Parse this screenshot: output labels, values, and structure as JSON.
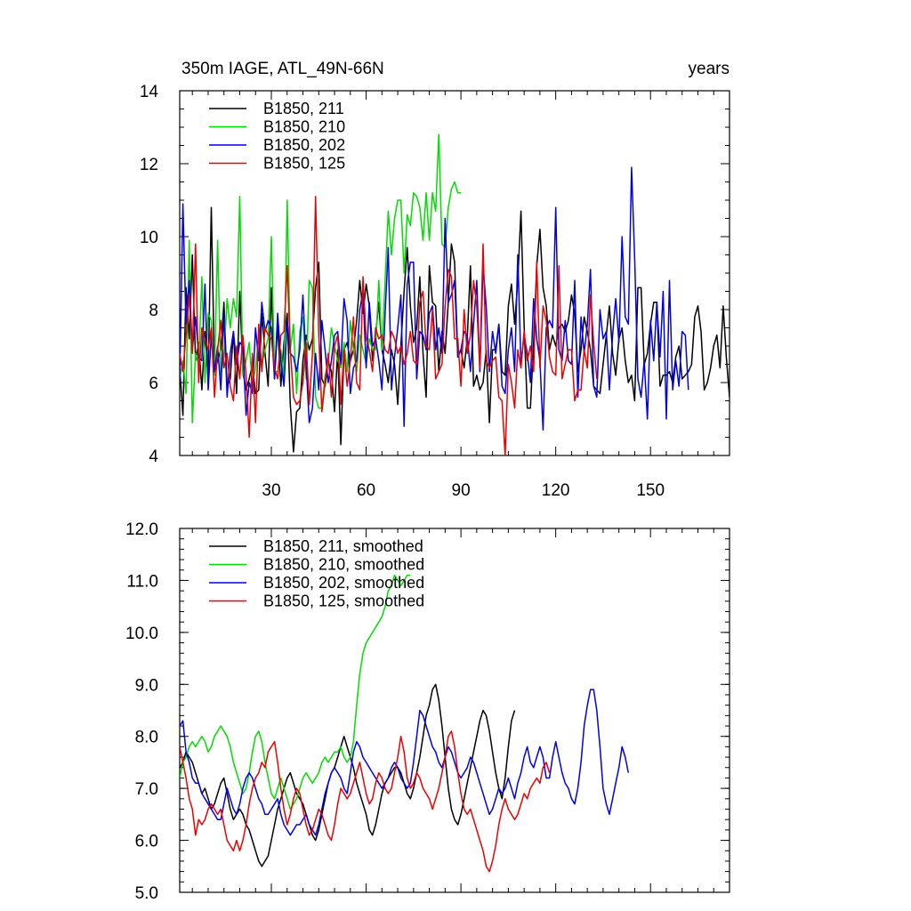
{
  "colors": {
    "black": "#000000",
    "green": "#00dd00",
    "blue": "#0000ee",
    "red": "#ee0000"
  },
  "chart_data": [
    {
      "type": "line",
      "title": "350m IAGE, ATL_49N-66N",
      "right_title": "years",
      "xlabel": "",
      "ylabel": "",
      "xlim": [
        1,
        175
      ],
      "ylim": [
        4,
        14
      ],
      "yticks": [
        4,
        6,
        8,
        10,
        12,
        14
      ],
      "ytick_labels": [
        "4",
        "6",
        "8",
        "10",
        "12",
        "14"
      ],
      "xticks": [
        30,
        60,
        90,
        120,
        150
      ],
      "xtick_labels": [
        "30",
        "60",
        "90",
        "120",
        "150"
      ],
      "legend_position": "top-left",
      "series": [
        {
          "name": "B1850, 211",
          "color": "#000000",
          "values": [
            6.4,
            5.1,
            8.6,
            7.2,
            9.5,
            6.6,
            7.1,
            5.8,
            7.4,
            6.1,
            10.8,
            6.3,
            6.6,
            6.9,
            8.2,
            5.9,
            6.1,
            7.4,
            5.7,
            8.5,
            6.3,
            5.8,
            6.1,
            6.5,
            5.7,
            5.8,
            7.9,
            6.8,
            5.9,
            8.6,
            6.1,
            7.6,
            5.9,
            7.1,
            7.9,
            5.4,
            4.1,
            5.2,
            5.3,
            6.6,
            7.3,
            6.9,
            7.2,
            8.6,
            9.3,
            6.1,
            5.9,
            6.6,
            6.3,
            5.2,
            6.9,
            4.3,
            6.9,
            7.1,
            6.6,
            6.9,
            7.7,
            8.8,
            7.9,
            8.7,
            8.1,
            6.6,
            7.3,
            8.2,
            6.9,
            6.5,
            6.0,
            6.9,
            6.5,
            5.4,
            7.0,
            8.5,
            9.7,
            8.1,
            7.1,
            7.5,
            8.9,
            6.8,
            5.6,
            9.2,
            8.2,
            8.1,
            6.3,
            7.4,
            6.8,
            8.2,
            9.8,
            9.3,
            6.7,
            6.9,
            6.4,
            7.2,
            9.2,
            5.9,
            6.2,
            5.8,
            6.0,
            6.9,
            4.9,
            6.9,
            6.9,
            7.6,
            6.3,
            6.2,
            8.1,
            8.7,
            7.6,
            8.8,
            10.7,
            7.6,
            5.3,
            5.3,
            7.1,
            9.2,
            10.2,
            8.6,
            8.1,
            6.9,
            7.3,
            7.0,
            7.5,
            7.6,
            7.4,
            7.7,
            8.4,
            7.9,
            6.3,
            6.9,
            7.8,
            7.4,
            6.9,
            5.9,
            5.8,
            5.7,
            6.5,
            7.3,
            8.1,
            6.8,
            6.2,
            7.2,
            7.5,
            6.6,
            6.0,
            6.2,
            5.5,
            8.6,
            8.6,
            6.5,
            6.8,
            7.6,
            8.2,
            8.2,
            5.9,
            6.2,
            6.2,
            6.3,
            6.0,
            6.7,
            7.0,
            6.1,
            6.2,
            6.3,
            6.5,
            7.8,
            8.1,
            7.4,
            5.8,
            6.0,
            6.4,
            7.0,
            7.3,
            6.4,
            8.1,
            6.7,
            5.6,
            6.3,
            6.0,
            6.4,
            7.5
          ]
        },
        {
          "name": "B1850, 210",
          "color": "#00dd00",
          "values": [
            6.1,
            6.6,
            5.7,
            9.9,
            4.9,
            6.8,
            6.5,
            8.9,
            6.0,
            7.9,
            7.7,
            6.2,
            9.9,
            6.2,
            6.7,
            8.3,
            7.5,
            8.3,
            7.8,
            11.1,
            6.2,
            6.6,
            7.1,
            5.9,
            6.4,
            7.3,
            6.5,
            6.9,
            7.2,
            10.0,
            6.3,
            6.3,
            6.9,
            6.1,
            11.0,
            6.9,
            7.6,
            5.7,
            7.4,
            7.8,
            6.1,
            8.8,
            8.6,
            5.6,
            5.3,
            5.3,
            6.2,
            6.5,
            7.5,
            7.0,
            6.6,
            6.4,
            7.1,
            6.3,
            7.7,
            6.9,
            6.3,
            7.3,
            6.9,
            6.5,
            7.2,
            6.9,
            6.9,
            8.8,
            6.9,
            8.8,
            10.7,
            9.5,
            10.5,
            11.0,
            11.0,
            9.0,
            10.6,
            10.3,
            11.2,
            11.1,
            10.8,
            9.9,
            11.2,
            9.9,
            11.2,
            10.7,
            12.8,
            9.8,
            9.7,
            10.8,
            11.3,
            11.5,
            11.2,
            11.2
          ]
        },
        {
          "name": "B1850, 202",
          "color": "#0000ee",
          "values": [
            6.0,
            10.9,
            7.6,
            8.8,
            6.9,
            7.8,
            6.7,
            6.6,
            8.7,
            5.8,
            7.3,
            6.3,
            7.0,
            5.8,
            7.9,
            5.6,
            6.8,
            7.4,
            6.5,
            7.1,
            7.0,
            5.1,
            6.0,
            5.7,
            7.5,
            6.6,
            8.2,
            7.4,
            7.7,
            7.5,
            6.1,
            7.9,
            6.6,
            5.9,
            7.7,
            6.8,
            6.7,
            6.3,
            6.9,
            8.4,
            6.5,
            4.9,
            5.3,
            6.8,
            5.8,
            7.7,
            6.9,
            6.0,
            6.6,
            7.3,
            7.4,
            6.5,
            8.3,
            7.7,
            5.7,
            6.4,
            6.6,
            8.0,
            8.5,
            6.4,
            8.2,
            7.0,
            7.2,
            6.6,
            5.8,
            7.9,
            9.7,
            5.8,
            6.7,
            7.5,
            8.4,
            4.8,
            8.7,
            9.3,
            9.3,
            6.1,
            7.4,
            7.3,
            6.9,
            7.9,
            8.1,
            6.9,
            7.5,
            6.8,
            10.5,
            8.2,
            8.4,
            8.8,
            6.7,
            6.9,
            7.4,
            7.3,
            6.3,
            7.6,
            8.8,
            6.3,
            9.2,
            8.1,
            6.3,
            7.4,
            6.8,
            7.6,
            5.9,
            5.7,
            6.9,
            7.5,
            6.3,
            9.5,
            6.5,
            7.3,
            6.8,
            6.0,
            8.3,
            7.2,
            6.6,
            4.7,
            7.5,
            7.7,
            7.5,
            10.8,
            6.9,
            6.6,
            7.7,
            6.6,
            6.5,
            8.8,
            5.6,
            7.8,
            6.8,
            7.6,
            9.1,
            5.9,
            5.6,
            8.0,
            7.2,
            7.4,
            5.8,
            7.3,
            8.3,
            7.1,
            10.0,
            7.8,
            7.6,
            11.9,
            9.4,
            6.1,
            5.6,
            6.6,
            5.0,
            7.7,
            6.6,
            8.2,
            6.7,
            8.5,
            5.0,
            8.8,
            5.8,
            6.6,
            5.9,
            7.4,
            7.3,
            5.8
          ]
        },
        {
          "name": "B1850, 125",
          "color": "#ee0000",
          "values": [
            6.8,
            6.3,
            7.3,
            8.4,
            6.8,
            9.8,
            6.0,
            7.5,
            7.2,
            6.9,
            7.5,
            5.6,
            6.9,
            7.7,
            6.4,
            6.8,
            5.9,
            5.5,
            7.0,
            6.1,
            7.3,
            6.2,
            4.5,
            6.8,
            4.9,
            7.6,
            6.3,
            7.5,
            7.3,
            7.2,
            6.4,
            6.1,
            7.3,
            7.4,
            9.2,
            6.9,
            5.6,
            5.4,
            5.5,
            6.0,
            7.1,
            5.4,
            6.8,
            11.1,
            7.3,
            5.2,
            6.0,
            6.8,
            5.6,
            7.0,
            7.3,
            5.4,
            6.9,
            5.9,
            6.6,
            7.8,
            6.0,
            5.8,
            8.9,
            7.2,
            6.9,
            6.3,
            7.5,
            7.2,
            7.3,
            6.9,
            6.8,
            7.4,
            7.2,
            6.8,
            7.0,
            6.5,
            6.8,
            7.4,
            6.6,
            6.5,
            8.2,
            8.5,
            7.0,
            6.9,
            8.0,
            6.1,
            6.3,
            6.5,
            8.1,
            9.1,
            8.9,
            7.2,
            7.2,
            5.9,
            8.0,
            6.8,
            7.3,
            8.8,
            8.1,
            6.4,
            9.8,
            6.6,
            6.4,
            6.6,
            6.7,
            5.6,
            5.5,
            4.0,
            6.5,
            6.0,
            5.3,
            6.9,
            6.4,
            7.4,
            6.6,
            7.0,
            6.3,
            9.3,
            6.4,
            8.1,
            7.7,
            6.7,
            6.3,
            6.2,
            9.2,
            6.1,
            6.5,
            6.9,
            6.9,
            5.5,
            5.8,
            5.8,
            6.9,
            6.4,
            8.4,
            7.1,
            6.1
          ]
        }
      ]
    },
    {
      "type": "line",
      "title": "",
      "xlabel": "",
      "ylabel": "",
      "xlim": [
        1,
        175
      ],
      "ylim": [
        5,
        12
      ],
      "yticks": [
        5,
        6,
        7,
        8,
        9,
        10,
        11,
        12
      ],
      "ytick_labels": [
        "5.0",
        "6.0",
        "7.0",
        "8.0",
        "9.0",
        "10.0",
        "11.0",
        "12.0"
      ],
      "xticks": [
        30,
        60,
        90,
        120,
        150
      ],
      "xtick_labels": [],
      "legend_position": "top-left",
      "series": [
        {
          "name": "B1850, 211, smoothed",
          "color": "#000000",
          "values": [
            7.4,
            7.5,
            7.7,
            7.6,
            7.5,
            7.3,
            7.1,
            6.9,
            7.0,
            6.8,
            6.6,
            6.7,
            6.9,
            7.1,
            7.2,
            6.9,
            6.6,
            6.4,
            6.5,
            6.6,
            6.5,
            6.3,
            6.2,
            6.0,
            5.8,
            5.6,
            5.5,
            5.6,
            5.7,
            6.0,
            6.3,
            6.6,
            6.8,
            7.0,
            7.2,
            7.3,
            7.1,
            6.9,
            6.8,
            6.7,
            6.5,
            6.3,
            6.1,
            6.0,
            6.2,
            6.5,
            6.8,
            7.1,
            7.3,
            7.4,
            7.6,
            7.8,
            8.0,
            7.8,
            7.6,
            7.4,
            7.1,
            6.9,
            6.7,
            6.5,
            6.2,
            6.1,
            6.3,
            6.6,
            6.9,
            7.1,
            7.2,
            7.3,
            7.4,
            7.4,
            7.3,
            7.1,
            6.9,
            6.8,
            7.0,
            7.3,
            7.6,
            8.0,
            8.4,
            8.6,
            8.9,
            9.0,
            8.7,
            8.2,
            7.6,
            7.0,
            6.6,
            6.4,
            6.3,
            6.5,
            6.8,
            7.1,
            7.4,
            7.7,
            8.0,
            8.3,
            8.5,
            8.4,
            8.1,
            7.7,
            7.3,
            7.0,
            6.8,
            7.2,
            7.8,
            8.3,
            8.5
          ]
        },
        {
          "name": "B1850, 210, smoothed",
          "color": "#00dd00",
          "values": [
            7.2,
            7.5,
            7.6,
            7.8,
            7.9,
            7.8,
            7.9,
            8.0,
            7.9,
            7.7,
            7.8,
            8.0,
            8.1,
            8.2,
            8.1,
            8.0,
            7.8,
            7.5,
            7.3,
            7.1,
            6.9,
            7.0,
            7.3,
            7.7,
            8.0,
            8.1,
            7.9,
            7.5,
            7.2,
            6.9,
            6.8,
            7.0,
            7.2,
            7.0,
            6.8,
            6.6,
            6.7,
            6.8,
            7.0,
            7.2,
            7.3,
            7.2,
            7.1,
            7.2,
            7.3,
            7.5,
            7.6,
            7.5,
            7.6,
            7.7,
            7.7,
            7.8,
            7.6,
            7.5,
            7.6,
            7.9,
            8.6,
            9.2,
            9.6,
            9.8,
            9.9,
            10.0,
            10.1,
            10.2,
            10.3,
            10.5,
            10.8,
            10.9,
            11.1,
            11.0,
            10.9,
            11.0,
            11.1,
            11.1
          ]
        },
        {
          "name": "B1850, 202, smoothed",
          "color": "#0000ee",
          "values": [
            8.2,
            8.3,
            7.7,
            7.5,
            7.2,
            7.1,
            7.1,
            6.9,
            6.8,
            6.7,
            6.6,
            6.5,
            6.4,
            6.4,
            6.7,
            7.0,
            6.8,
            6.6,
            6.5,
            6.7,
            7.0,
            7.2,
            7.3,
            7.2,
            7.0,
            6.8,
            6.7,
            6.5,
            6.5,
            6.6,
            6.7,
            6.8,
            6.5,
            6.3,
            6.2,
            6.1,
            6.2,
            6.3,
            6.3,
            6.4,
            6.5,
            6.3,
            6.2,
            6.1,
            6.3,
            6.6,
            6.9,
            7.1,
            7.3,
            7.4,
            7.3,
            7.2,
            7.0,
            6.9,
            7.3,
            7.7,
            7.9,
            7.8,
            7.6,
            7.5,
            7.4,
            7.3,
            7.2,
            7.1,
            7.0,
            7.1,
            7.2,
            7.4,
            7.5,
            7.4,
            7.2,
            7.1,
            7.0,
            7.1,
            7.5,
            8.0,
            8.5,
            8.4,
            8.2,
            8.0,
            7.8,
            7.7,
            7.5,
            7.4,
            7.6,
            7.8,
            7.7,
            7.5,
            7.3,
            7.2,
            7.3,
            7.4,
            7.6,
            7.5,
            7.3,
            7.1,
            6.9,
            6.7,
            6.5,
            6.6,
            6.8,
            7.0,
            6.9,
            7.0,
            7.2,
            7.0,
            6.8,
            7.1,
            7.3,
            7.6,
            7.8,
            7.5,
            7.4,
            7.6,
            7.8,
            7.6,
            7.2,
            7.2,
            7.6,
            7.9,
            7.6,
            7.3,
            7.1,
            7.0,
            6.8,
            6.7,
            7.0,
            7.5,
            8.2,
            8.6,
            8.9,
            8.9,
            8.5,
            7.8,
            7.0,
            6.7,
            6.5,
            6.8,
            7.1,
            7.4,
            7.8,
            7.6,
            7.3
          ]
        },
        {
          "name": "B1850, 125, smoothed",
          "color": "#ee0000",
          "values": [
            7.8,
            7.5,
            7.2,
            6.8,
            6.6,
            6.1,
            6.4,
            6.3,
            6.4,
            6.6,
            6.7,
            6.6,
            6.5,
            6.6,
            6.3,
            6.0,
            5.9,
            5.8,
            6.0,
            5.8,
            6.0,
            6.3,
            6.7,
            7.0,
            7.2,
            7.3,
            7.5,
            7.4,
            7.7,
            7.8,
            7.9,
            7.5,
            7.0,
            6.6,
            6.3,
            6.5,
            6.8,
            7.0,
            6.9,
            6.6,
            6.3,
            6.1,
            6.2,
            6.4,
            6.6,
            6.5,
            6.3,
            6.1,
            6.0,
            6.3,
            6.7,
            7.0,
            6.9,
            6.8,
            6.9,
            7.1,
            7.3,
            7.5,
            7.2,
            6.9,
            6.7,
            6.8,
            7.1,
            7.3,
            7.2,
            7.0,
            6.9,
            7.0,
            7.3,
            7.6,
            8.0,
            7.7,
            7.2,
            7.0,
            7.1,
            7.3,
            7.2,
            7.0,
            6.9,
            6.8,
            6.6,
            6.8,
            7.0,
            7.3,
            7.6,
            8.0,
            8.1,
            7.8,
            7.3,
            6.9,
            6.6,
            6.5,
            6.6,
            6.4,
            6.2,
            6.0,
            5.8,
            5.5,
            5.4,
            5.6,
            5.9,
            6.3,
            6.6,
            6.8,
            6.6,
            6.5,
            6.4,
            6.5,
            6.7,
            6.9,
            6.8,
            7.0,
            7.1,
            7.2,
            7.1,
            7.4,
            7.5,
            7.3
          ]
        }
      ]
    }
  ]
}
